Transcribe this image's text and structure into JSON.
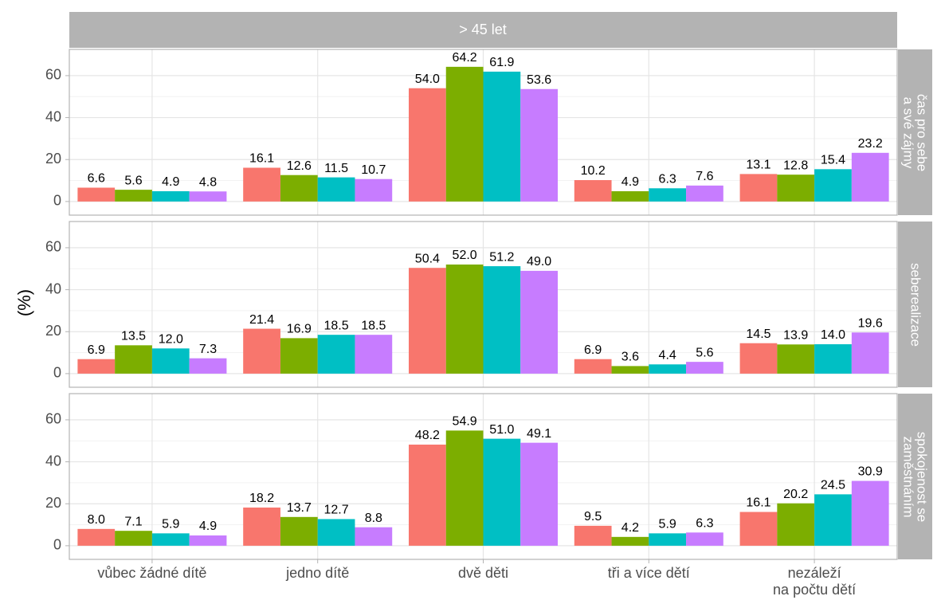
{
  "chart_data": {
    "type": "bar",
    "title": "> 45 let",
    "ylabel": "(%)",
    "categories": [
      "vůbec žádné dítě",
      "jedno dítě",
      "dvě děti",
      "tři a více dětí",
      "nezáleží\nna počtu dětí"
    ],
    "ylim": [
      -6.5,
      72.5
    ],
    "yticks": [
      0,
      20,
      40,
      60
    ],
    "minor_yticks": [
      10,
      30,
      50
    ],
    "grid": true,
    "panels": [
      {
        "label": "čas pro sebe\na své zájmy",
        "series": [
          {
            "color": "#F8766D",
            "values": [
              6.6,
              16.1,
              54.0,
              10.2,
              13.1
            ],
            "value_labels": [
              "6.6",
              "16.1",
              "54.0",
              "10.2",
              "13.1"
            ]
          },
          {
            "color": "#7CAE00",
            "values": [
              5.6,
              12.6,
              64.2,
              4.9,
              12.8
            ],
            "value_labels": [
              "5.6",
              "12.6",
              "64.2",
              "4.9",
              "12.8"
            ]
          },
          {
            "color": "#00BFC4",
            "values": [
              4.9,
              11.5,
              61.9,
              6.3,
              15.4
            ],
            "value_labels": [
              "4.9",
              "11.5",
              "61.9",
              "6.3",
              "15.4"
            ]
          },
          {
            "color": "#C77CFF",
            "values": [
              4.8,
              10.7,
              53.6,
              7.6,
              23.2
            ],
            "value_labels": [
              "4.8",
              "10.7",
              "53.6",
              "7.6",
              "23.2"
            ]
          }
        ]
      },
      {
        "label": "seberealizace",
        "series": [
          {
            "color": "#F8766D",
            "values": [
              6.9,
              21.4,
              50.4,
              6.9,
              14.5
            ],
            "value_labels": [
              "6.9",
              "21.4",
              "50.4",
              "6.9",
              "14.5"
            ]
          },
          {
            "color": "#7CAE00",
            "values": [
              13.5,
              16.9,
              52.0,
              3.6,
              13.9
            ],
            "value_labels": [
              "13.5",
              "16.9",
              "52.0",
              "3.6",
              "13.9"
            ]
          },
          {
            "color": "#00BFC4",
            "values": [
              12.0,
              18.5,
              51.2,
              4.4,
              14.0
            ],
            "value_labels": [
              "12.0",
              "18.5",
              "51.2",
              "4.4",
              "14.0"
            ]
          },
          {
            "color": "#C77CFF",
            "values": [
              7.3,
              18.5,
              49.0,
              5.6,
              19.6
            ],
            "value_labels": [
              "7.3",
              "18.5",
              "49.0",
              "5.6",
              "19.6"
            ]
          }
        ]
      },
      {
        "label": "spokojenost se\nzaměstnáním",
        "series": [
          {
            "color": "#F8766D",
            "values": [
              8.0,
              18.2,
              48.2,
              9.5,
              16.1
            ],
            "value_labels": [
              "8.0",
              "18.2",
              "48.2",
              "9.5",
              "16.1"
            ]
          },
          {
            "color": "#7CAE00",
            "values": [
              7.1,
              13.7,
              54.9,
              4.2,
              20.2
            ],
            "value_labels": [
              "7.1",
              "13.7",
              "54.9",
              "4.2",
              "20.2"
            ]
          },
          {
            "color": "#00BFC4",
            "values": [
              5.9,
              12.7,
              51.0,
              5.9,
              24.5
            ],
            "value_labels": [
              "5.9",
              "12.7",
              "51.0",
              "5.9",
              "24.5"
            ]
          },
          {
            "color": "#C77CFF",
            "values": [
              4.9,
              8.8,
              49.1,
              6.3,
              30.9
            ],
            "value_labels": [
              "4.9",
              "8.8",
              "49.1",
              "6.3",
              "30.9"
            ]
          }
        ]
      }
    ]
  }
}
